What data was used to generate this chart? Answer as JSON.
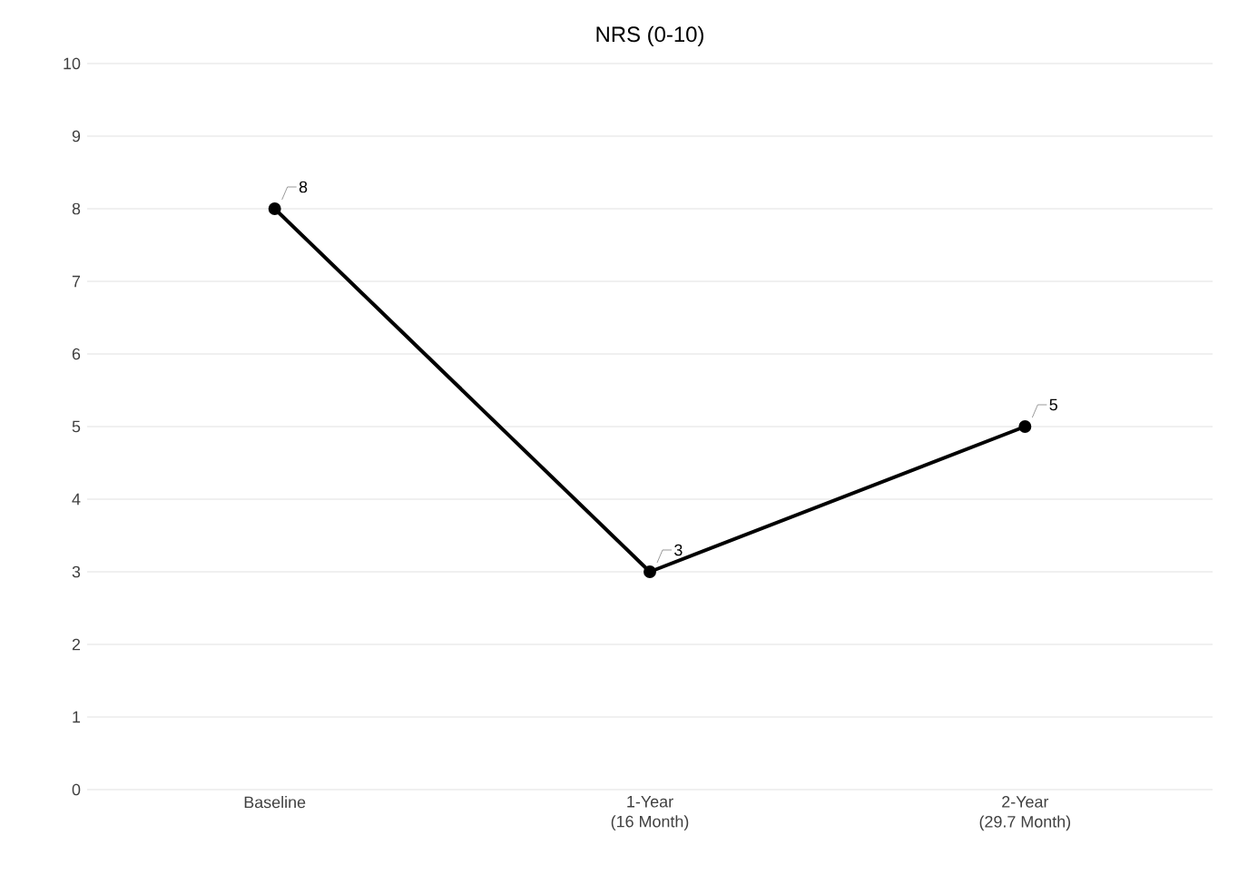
{
  "chart_data": {
    "type": "line",
    "title": "NRS (0-10)",
    "categories": [
      "Baseline",
      "1-Year\n(16 Month)",
      "2-Year\n(29.7 Month)"
    ],
    "series": [
      {
        "color": "#000000",
        "values": [
          8,
          3,
          5
        ]
      }
    ],
    "ylim": [
      0,
      10
    ],
    "yticks": [
      0,
      1,
      2,
      3,
      4,
      5,
      6,
      7,
      8,
      9,
      10
    ],
    "grid": "y",
    "marker": "circle",
    "line_style": "solid",
    "data_labels": true
  }
}
